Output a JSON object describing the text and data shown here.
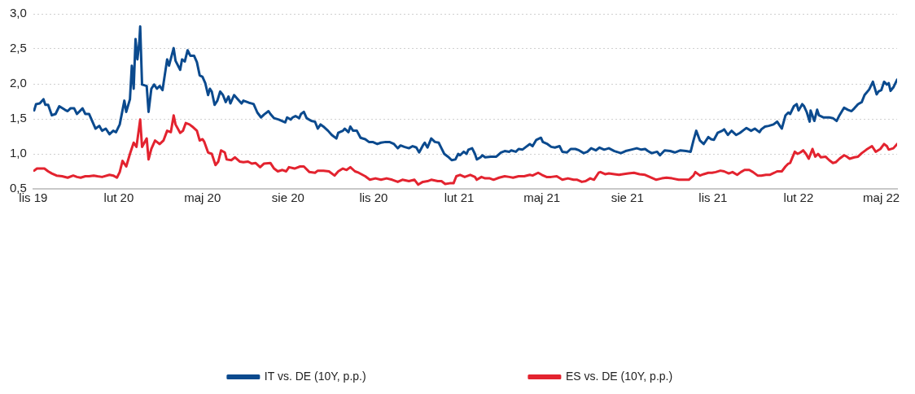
{
  "chart_data": {
    "type": "line",
    "xlim": [
      "2019-11-01",
      "2022-05-18"
    ],
    "xticks": [
      {
        "value": "2019-11-01",
        "label": "lis 19"
      },
      {
        "value": "2020-02-01",
        "label": "lut 20"
      },
      {
        "value": "2020-05-01",
        "label": "maj 20"
      },
      {
        "value": "2020-08-01",
        "label": "sie 20"
      },
      {
        "value": "2020-11-01",
        "label": "lis 20"
      },
      {
        "value": "2021-02-01",
        "label": "lut 21"
      },
      {
        "value": "2021-05-01",
        "label": "maj 21"
      },
      {
        "value": "2021-08-01",
        "label": "sie 21"
      },
      {
        "value": "2021-11-01",
        "label": "lis 21"
      },
      {
        "value": "2022-02-01",
        "label": "lut 22"
      },
      {
        "value": "2022-05-01",
        "label": "maj 22"
      }
    ],
    "ylim": [
      0.5,
      3.0
    ],
    "yticks": [
      {
        "value": 0.5,
        "label": "0,5"
      },
      {
        "value": 1.0,
        "label": "1,0"
      },
      {
        "value": 1.5,
        "label": "1,5"
      },
      {
        "value": 2.0,
        "label": "2,0"
      },
      {
        "value": 2.5,
        "label": "2,5"
      },
      {
        "value": 3.0,
        "label": "3,0"
      }
    ],
    "grid": "y",
    "legend": "bottom",
    "series": [
      {
        "name": "IT vs. DE (10Y, p.p.)",
        "color": "#0b4a8e",
        "x": [
          "2019-11-02",
          "2019-11-04",
          "2019-11-08",
          "2019-11-12",
          "2019-11-14",
          "2019-11-17",
          "2019-11-21",
          "2019-11-25",
          "2019-11-29",
          "2019-12-05",
          "2019-12-08",
          "2019-12-11",
          "2019-12-15",
          "2019-12-18",
          "2019-12-24",
          "2019-12-27",
          "2019-12-31",
          "2020-01-07",
          "2020-01-11",
          "2020-01-14",
          "2020-01-18",
          "2020-01-22",
          "2020-01-26",
          "2020-01-29",
          "2020-02-02",
          "2020-02-07",
          "2020-02-09",
          "2020-02-13",
          "2020-02-15",
          "2020-02-17",
          "2020-02-19",
          "2020-02-21",
          "2020-02-23",
          "2020-02-24",
          "2020-02-26",
          "2020-03-02",
          "2020-03-04",
          "2020-03-07",
          "2020-03-10",
          "2020-03-13",
          "2020-03-16",
          "2020-03-19",
          "2020-03-24",
          "2020-03-26",
          "2020-03-31",
          "2020-04-02",
          "2020-04-07",
          "2020-04-09",
          "2020-04-12",
          "2020-04-15",
          "2020-04-18",
          "2020-04-22",
          "2020-04-25",
          "2020-04-28",
          "2020-05-01",
          "2020-05-04",
          "2020-05-07",
          "2020-05-09",
          "2020-05-11",
          "2020-05-14",
          "2020-05-17",
          "2020-05-20",
          "2020-05-23",
          "2020-05-26",
          "2020-05-29",
          "2020-05-31",
          "2020-06-04",
          "2020-06-08",
          "2020-06-12",
          "2020-06-14",
          "2020-06-20",
          "2020-06-23",
          "2020-06-25",
          "2020-06-29",
          "2020-07-03",
          "2020-07-06",
          "2020-07-11",
          "2020-07-13",
          "2020-07-17",
          "2020-07-22",
          "2020-07-29",
          "2020-07-31",
          "2020-08-04",
          "2020-08-06",
          "2020-08-09",
          "2020-08-13",
          "2020-08-15",
          "2020-08-18",
          "2020-08-21",
          "2020-08-26",
          "2020-08-30",
          "2020-09-02",
          "2020-09-05",
          "2020-09-08",
          "2020-09-13",
          "2020-09-17",
          "2020-09-22",
          "2020-09-24",
          "2020-09-29",
          "2020-10-01",
          "2020-10-05",
          "2020-10-07",
          "2020-10-10",
          "2020-10-14",
          "2020-10-18",
          "2020-10-23",
          "2020-10-27",
          "2020-10-31",
          "2020-11-05",
          "2020-11-09",
          "2020-11-14",
          "2020-11-18",
          "2020-11-23",
          "2020-11-27",
          "2020-11-30",
          "2020-12-04",
          "2020-12-09",
          "2020-12-13",
          "2020-12-17",
          "2020-12-20",
          "2020-12-24",
          "2020-12-26",
          "2020-12-29",
          "2021-01-02",
          "2021-01-06",
          "2021-01-10",
          "2021-01-13",
          "2021-01-16",
          "2021-01-20",
          "2021-01-24",
          "2021-01-28",
          "2021-01-31",
          "2021-02-02",
          "2021-02-06",
          "2021-02-09",
          "2021-02-11",
          "2021-02-15",
          "2021-02-18",
          "2021-02-20",
          "2021-02-24",
          "2021-02-26",
          "2021-03-01",
          "2021-03-07",
          "2021-03-13",
          "2021-03-18",
          "2021-03-22",
          "2021-03-27",
          "2021-03-29",
          "2021-04-03",
          "2021-04-06",
          "2021-04-10",
          "2021-04-14",
          "2021-04-18",
          "2021-04-21",
          "2021-04-25",
          "2021-04-30",
          "2021-05-02",
          "2021-05-07",
          "2021-05-11",
          "2021-05-15",
          "2021-05-20",
          "2021-05-23",
          "2021-05-28",
          "2021-06-01",
          "2021-06-06",
          "2021-06-10",
          "2021-06-15",
          "2021-06-19",
          "2021-06-23",
          "2021-06-28",
          "2021-07-02",
          "2021-07-07",
          "2021-07-12",
          "2021-07-18",
          "2021-07-25",
          "2021-07-30",
          "2021-08-05",
          "2021-08-11",
          "2021-08-16",
          "2021-08-20",
          "2021-08-23",
          "2021-08-27",
          "2021-09-02",
          "2021-09-05",
          "2021-09-10",
          "2021-09-16",
          "2021-09-21",
          "2021-09-27",
          "2021-10-03",
          "2021-10-08",
          "2021-10-11",
          "2021-10-14",
          "2021-10-18",
          "2021-10-22",
          "2021-10-27",
          "2021-10-30",
          "2021-11-02",
          "2021-11-06",
          "2021-11-11",
          "2021-11-13",
          "2021-11-17",
          "2021-11-21",
          "2021-11-26",
          "2021-11-30",
          "2021-12-05",
          "2021-12-07",
          "2021-12-12",
          "2021-12-16",
          "2021-12-21",
          "2021-12-23",
          "2021-12-27",
          "2021-12-31",
          "2022-01-05",
          "2022-01-09",
          "2022-01-12",
          "2022-01-14",
          "2022-01-18",
          "2022-01-21",
          "2022-01-23",
          "2022-01-27",
          "2022-01-30",
          "2022-02-01",
          "2022-02-05",
          "2022-02-07",
          "2022-02-10",
          "2022-02-13",
          "2022-02-14",
          "2022-02-18",
          "2022-02-21",
          "2022-02-23",
          "2022-02-28",
          "2022-03-06",
          "2022-03-10",
          "2022-03-14",
          "2022-03-17",
          "2022-03-22",
          "2022-03-26",
          "2022-03-30",
          "2022-04-02",
          "2022-04-06",
          "2022-04-10",
          "2022-04-13",
          "2022-04-18",
          "2022-04-22",
          "2022-04-26",
          "2022-04-28",
          "2022-05-01",
          "2022-05-04",
          "2022-05-07",
          "2022-05-09",
          "2022-05-11",
          "2022-05-14",
          "2022-05-18"
        ],
        "values": [
          1.62,
          1.71,
          1.72,
          1.78,
          1.7,
          1.7,
          1.55,
          1.57,
          1.68,
          1.63,
          1.61,
          1.65,
          1.65,
          1.57,
          1.65,
          1.57,
          1.57,
          1.36,
          1.4,
          1.33,
          1.36,
          1.28,
          1.33,
          1.31,
          1.42,
          1.76,
          1.6,
          1.78,
          2.26,
          1.93,
          2.64,
          2.35,
          2.59,
          2.82,
          1.99,
          1.97,
          1.6,
          1.93,
          1.99,
          1.93,
          1.97,
          1.91,
          2.35,
          2.26,
          2.51,
          2.33,
          2.2,
          2.35,
          2.32,
          2.48,
          2.4,
          2.4,
          2.31,
          2.12,
          2.1,
          2.01,
          1.84,
          1.93,
          1.89,
          1.7,
          1.76,
          1.89,
          1.84,
          1.74,
          1.82,
          1.72,
          1.84,
          1.78,
          1.72,
          1.76,
          1.73,
          1.72,
          1.71,
          1.59,
          1.52,
          1.56,
          1.61,
          1.57,
          1.51,
          1.49,
          1.45,
          1.52,
          1.49,
          1.52,
          1.54,
          1.51,
          1.57,
          1.6,
          1.51,
          1.47,
          1.46,
          1.36,
          1.42,
          1.39,
          1.33,
          1.27,
          1.22,
          1.3,
          1.33,
          1.36,
          1.31,
          1.39,
          1.33,
          1.33,
          1.23,
          1.21,
          1.17,
          1.17,
          1.14,
          1.16,
          1.17,
          1.17,
          1.14,
          1.08,
          1.12,
          1.1,
          1.08,
          1.11,
          1.09,
          1.02,
          1.12,
          1.16,
          1.09,
          1.22,
          1.17,
          1.16,
          1.08,
          1.0,
          0.96,
          0.91,
          0.92,
          1.0,
          0.98,
          1.03,
          1.0,
          1.06,
          1.08,
          1.0,
          0.92,
          0.95,
          0.98,
          0.95,
          0.96,
          0.96,
          1.02,
          1.04,
          1.03,
          1.05,
          1.03,
          1.07,
          1.06,
          1.1,
          1.14,
          1.11,
          1.2,
          1.23,
          1.17,
          1.14,
          1.1,
          1.09,
          1.11,
          1.03,
          1.02,
          1.07,
          1.07,
          1.05,
          1.01,
          1.03,
          1.08,
          1.05,
          1.09,
          1.06,
          1.08,
          1.04,
          1.01,
          1.04,
          1.06,
          1.08,
          1.06,
          1.07,
          1.04,
          1.01,
          1.03,
          0.98,
          1.05,
          1.04,
          1.02,
          1.05,
          1.04,
          1.03,
          1.19,
          1.33,
          1.19,
          1.14,
          1.24,
          1.21,
          1.2,
          1.3,
          1.33,
          1.35,
          1.27,
          1.33,
          1.27,
          1.3,
          1.35,
          1.37,
          1.33,
          1.36,
          1.31,
          1.35,
          1.39,
          1.4,
          1.42,
          1.46,
          1.4,
          1.36,
          1.55,
          1.59,
          1.57,
          1.68,
          1.71,
          1.62,
          1.71,
          1.68,
          1.59,
          1.46,
          1.62,
          1.47,
          1.63,
          1.55,
          1.52,
          1.52,
          1.51,
          1.47,
          1.55,
          1.66,
          1.63,
          1.61,
          1.65,
          1.71,
          1.74,
          1.84,
          1.92,
          2.03,
          1.85,
          1.89,
          1.91,
          2.03,
          1.99,
          2.01,
          1.9,
          1.95,
          2.06
        ]
      },
      {
        "name": "ES vs. DE (10Y, p.p.)",
        "color": "#e3232f",
        "x": [
          "2019-11-02",
          "2019-11-05",
          "2019-11-10",
          "2019-11-13",
          "2019-11-17",
          "2019-11-21",
          "2019-11-26",
          "2019-12-02",
          "2019-12-08",
          "2019-12-14",
          "2019-12-18",
          "2019-12-22",
          "2019-12-27",
          "2019-12-31",
          "2020-01-05",
          "2020-01-09",
          "2020-01-14",
          "2020-01-22",
          "2020-01-26",
          "2020-01-30",
          "2020-02-02",
          "2020-02-05",
          "2020-02-09",
          "2020-02-13",
          "2020-02-17",
          "2020-02-20",
          "2020-02-24",
          "2020-02-26",
          "2020-03-02",
          "2020-03-04",
          "2020-03-07",
          "2020-03-11",
          "2020-03-16",
          "2020-03-20",
          "2020-03-24",
          "2020-03-28",
          "2020-03-31",
          "2020-04-02",
          "2020-04-07",
          "2020-04-10",
          "2020-04-13",
          "2020-04-17",
          "2020-04-20",
          "2020-04-25",
          "2020-04-28",
          "2020-05-01",
          "2020-05-03",
          "2020-05-07",
          "2020-05-11",
          "2020-05-15",
          "2020-05-18",
          "2020-05-21",
          "2020-05-25",
          "2020-05-27",
          "2020-06-01",
          "2020-06-05",
          "2020-06-10",
          "2020-06-14",
          "2020-06-19",
          "2020-06-23",
          "2020-06-27",
          "2020-07-02",
          "2020-07-06",
          "2020-07-13",
          "2020-07-17",
          "2020-07-21",
          "2020-07-26",
          "2020-07-30",
          "2020-08-02",
          "2020-08-08",
          "2020-08-14",
          "2020-08-18",
          "2020-08-24",
          "2020-08-30",
          "2020-09-02",
          "2020-09-08",
          "2020-09-14",
          "2020-09-20",
          "2020-09-24",
          "2020-09-29",
          "2020-10-03",
          "2020-10-07",
          "2020-10-12",
          "2020-10-16",
          "2020-10-23",
          "2020-10-28",
          "2020-11-03",
          "2020-11-09",
          "2020-11-15",
          "2020-11-21",
          "2020-11-27",
          "2020-12-02",
          "2020-12-09",
          "2020-12-15",
          "2020-12-19",
          "2020-12-24",
          "2020-12-29",
          "2021-01-02",
          "2021-01-09",
          "2021-01-13",
          "2021-01-17",
          "2021-01-22",
          "2021-01-26",
          "2021-01-29",
          "2021-02-02",
          "2021-02-07",
          "2021-02-13",
          "2021-02-18",
          "2021-02-20",
          "2021-02-25",
          "2021-03-01",
          "2021-03-06",
          "2021-03-10",
          "2021-03-16",
          "2021-03-22",
          "2021-03-27",
          "2021-03-31",
          "2021-04-06",
          "2021-04-12",
          "2021-04-18",
          "2021-04-21",
          "2021-04-27",
          "2021-05-01",
          "2021-05-06",
          "2021-05-11",
          "2021-05-17",
          "2021-05-23",
          "2021-05-29",
          "2021-06-04",
          "2021-06-08",
          "2021-06-13",
          "2021-06-17",
          "2021-06-22",
          "2021-06-26",
          "2021-07-01",
          "2021-07-03",
          "2021-07-08",
          "2021-07-12",
          "2021-07-18",
          "2021-07-23",
          "2021-07-27",
          "2021-08-02",
          "2021-08-08",
          "2021-08-14",
          "2021-08-20",
          "2021-08-25",
          "2021-09-01",
          "2021-09-07",
          "2021-09-12",
          "2021-09-18",
          "2021-09-25",
          "2021-10-02",
          "2021-10-06",
          "2021-10-11",
          "2021-10-13",
          "2021-10-18",
          "2021-10-22",
          "2021-10-27",
          "2021-10-31",
          "2021-11-04",
          "2021-11-09",
          "2021-11-13",
          "2021-11-18",
          "2021-11-22",
          "2021-11-27",
          "2021-12-01",
          "2021-12-05",
          "2021-12-10",
          "2021-12-14",
          "2021-12-19",
          "2021-12-23",
          "2021-12-28",
          "2022-01-01",
          "2022-01-06",
          "2022-01-09",
          "2022-01-14",
          "2022-01-18",
          "2022-01-21",
          "2022-01-23",
          "2022-01-28",
          "2022-01-31",
          "2022-02-03",
          "2022-02-06",
          "2022-02-09",
          "2022-02-12",
          "2022-02-14",
          "2022-02-16",
          "2022-02-19",
          "2022-02-22",
          "2022-02-25",
          "2022-03-02",
          "2022-03-06",
          "2022-03-10",
          "2022-03-13",
          "2022-03-17",
          "2022-03-22",
          "2022-03-25",
          "2022-03-28",
          "2022-04-02",
          "2022-04-06",
          "2022-04-10",
          "2022-04-15",
          "2022-04-21",
          "2022-04-25",
          "2022-04-30",
          "2022-05-04",
          "2022-05-07",
          "2022-05-09",
          "2022-05-14",
          "2022-05-18"
        ],
        "values": [
          0.76,
          0.79,
          0.79,
          0.79,
          0.75,
          0.72,
          0.69,
          0.68,
          0.66,
          0.69,
          0.67,
          0.66,
          0.68,
          0.68,
          0.69,
          0.68,
          0.67,
          0.7,
          0.69,
          0.66,
          0.74,
          0.9,
          0.82,
          1.0,
          1.16,
          1.1,
          1.49,
          1.1,
          1.22,
          0.92,
          1.07,
          1.19,
          1.14,
          1.19,
          1.33,
          1.31,
          1.55,
          1.42,
          1.3,
          1.33,
          1.44,
          1.42,
          1.39,
          1.33,
          1.19,
          1.21,
          1.17,
          1.02,
          1.0,
          0.84,
          0.89,
          1.05,
          1.02,
          0.92,
          0.91,
          0.95,
          0.89,
          0.88,
          0.89,
          0.86,
          0.87,
          0.81,
          0.86,
          0.87,
          0.79,
          0.75,
          0.77,
          0.75,
          0.81,
          0.79,
          0.82,
          0.82,
          0.74,
          0.73,
          0.76,
          0.76,
          0.75,
          0.69,
          0.75,
          0.79,
          0.77,
          0.81,
          0.75,
          0.73,
          0.68,
          0.63,
          0.65,
          0.63,
          0.65,
          0.63,
          0.6,
          0.63,
          0.61,
          0.63,
          0.56,
          0.6,
          0.61,
          0.63,
          0.61,
          0.61,
          0.57,
          0.58,
          0.58,
          0.68,
          0.7,
          0.67,
          0.7,
          0.67,
          0.63,
          0.67,
          0.65,
          0.65,
          0.63,
          0.66,
          0.68,
          0.67,
          0.66,
          0.68,
          0.68,
          0.7,
          0.69,
          0.73,
          0.7,
          0.67,
          0.67,
          0.68,
          0.63,
          0.65,
          0.63,
          0.63,
          0.6,
          0.61,
          0.65,
          0.63,
          0.73,
          0.74,
          0.71,
          0.72,
          0.71,
          0.7,
          0.71,
          0.72,
          0.73,
          0.71,
          0.7,
          0.67,
          0.63,
          0.65,
          0.66,
          0.65,
          0.63,
          0.63,
          0.63,
          0.69,
          0.74,
          0.69,
          0.71,
          0.73,
          0.73,
          0.74,
          0.76,
          0.75,
          0.72,
          0.74,
          0.7,
          0.74,
          0.77,
          0.77,
          0.74,
          0.69,
          0.69,
          0.7,
          0.7,
          0.73,
          0.75,
          0.75,
          0.82,
          0.86,
          0.87,
          1.03,
          1.0,
          1.02,
          1.05,
          1.0,
          0.93,
          1.0,
          1.07,
          0.96,
          1.0,
          0.95,
          0.96,
          0.91,
          0.87,
          0.88,
          0.93,
          0.98,
          0.96,
          0.93,
          0.95,
          0.96,
          1.01,
          1.06,
          1.11,
          1.03,
          1.07,
          1.14,
          1.11,
          1.06,
          1.08,
          1.14
        ]
      }
    ]
  }
}
